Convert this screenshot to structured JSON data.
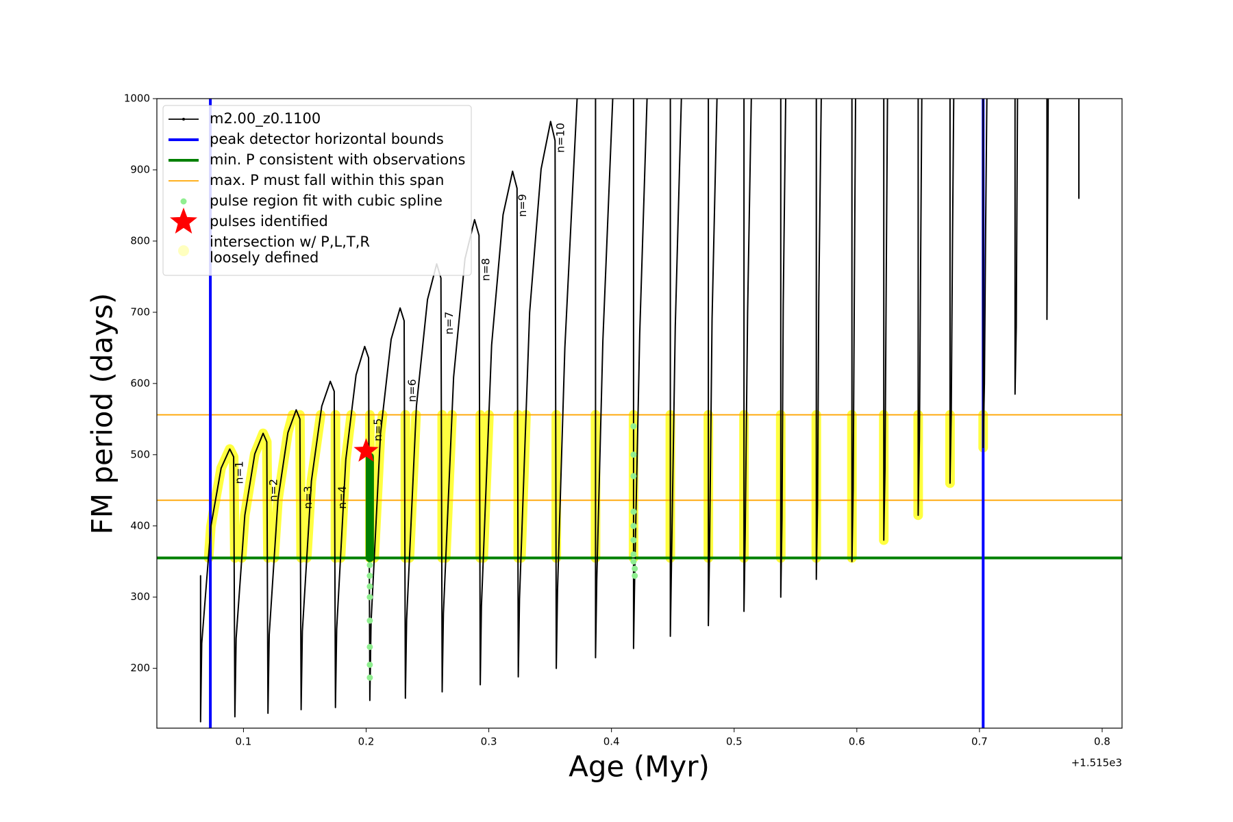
{
  "chart_data": {
    "type": "pulse-track",
    "xlabel": "Age (Myr)",
    "ylabel": "FM period (days)",
    "x_offset_label": "+1.515e3",
    "xlim": [
      0.0294,
      0.8162
    ],
    "ylim": [
      116,
      1000
    ],
    "xticks": [
      0.1,
      0.2,
      0.3,
      0.4,
      0.5,
      0.6,
      0.7,
      0.8
    ],
    "yticks": [
      200,
      300,
      400,
      500,
      600,
      700,
      800,
      900,
      1000
    ],
    "legend": "upper left",
    "series": [
      {
        "name": "m2.00_z0.1100",
        "kind": "line",
        "color": "#000000",
        "linewidth": 2,
        "x": [
          0.065,
          0.065,
          0.066,
          0.0734,
          0.0818,
          0.0888,
          0.092,
          0.093,
          0.094,
          0.1011,
          0.1092,
          0.116,
          0.119,
          0.12,
          0.121,
          0.1281,
          0.1362,
          0.143,
          0.146,
          0.147,
          0.148,
          0.1554,
          0.1638,
          0.1708,
          0.174,
          0.175,
          0.176,
          0.1834,
          0.1918,
          0.1988,
          0.202,
          0.203,
          0.204,
          0.2117,
          0.2204,
          0.2277,
          0.231,
          0.232,
          0.233,
          0.241,
          0.25,
          0.2575,
          0.261,
          0.262,
          0.263,
          0.2713,
          0.2806,
          0.2884,
          0.292,
          0.293,
          0.294,
          0.3023,
          0.3116,
          0.3194,
          0.323,
          0.324,
          0.325,
          0.3333,
          0.3426,
          0.3504,
          0.354,
          0.355,
          0.356,
          0.362,
          0.372,
          null,
          0.387,
          0.387,
          0.388,
          0.393,
          0.401,
          null,
          0.418,
          0.418,
          0.419,
          0.423,
          0.429,
          null,
          0.448,
          0.448,
          0.449,
          0.452,
          0.457,
          null,
          0.479,
          0.479,
          0.48,
          0.482,
          0.486,
          null,
          0.508,
          0.508,
          0.509,
          0.511,
          0.514,
          null,
          0.538,
          0.538,
          0.539,
          0.54,
          0.542,
          null,
          0.567,
          0.567,
          0.568,
          0.569,
          0.571,
          null,
          0.596,
          0.596,
          0.597,
          0.598,
          0.599,
          null,
          0.622,
          0.622,
          0.623,
          0.624,
          0.625,
          null,
          0.65,
          0.65,
          0.651,
          0.652,
          0.653,
          null,
          0.676,
          0.676,
          0.677,
          0.678,
          0.679,
          null,
          0.703,
          0.703,
          0.704,
          0.705,
          0.706,
          null,
          0.729,
          0.729,
          0.73,
          0.731,
          null,
          0.755,
          0.755,
          0.756,
          null,
          0.781,
          0.781
        ],
        "values": [
          330,
          125,
          235,
          399,
          481,
          508,
          497,
          132,
          242,
          415,
          501,
          530,
          518,
          137,
          247,
          437,
          531,
          563,
          550,
          142,
          252,
          463,
          568,
          603,
          589,
          145,
          255,
          493,
          612,
          652,
          636,
          155,
          265,
          530,
          662,
          706,
          688,
          158,
          268,
          568,
          718,
          768,
          748,
          167,
          277,
          609,
          775,
          830,
          808,
          177,
          287,
          654,
          837,
          898,
          874,
          188,
          298,
          700,
          901,
          968,
          941,
          200,
          310,
          650,
          1000,
          null,
          1000,
          215,
          325,
          660,
          1000,
          null,
          1000,
          228,
          338,
          670,
          1000,
          null,
          1000,
          245,
          355,
          680,
          1000,
          null,
          1000,
          260,
          370,
          690,
          1000,
          null,
          1000,
          280,
          390,
          700,
          1000,
          null,
          1000,
          300,
          410,
          710,
          1000,
          null,
          1000,
          325,
          430,
          720,
          1000,
          null,
          1000,
          350,
          450,
          730,
          1000,
          null,
          1000,
          380,
          480,
          750,
          1000,
          null,
          1000,
          415,
          520,
          770,
          1000,
          null,
          1000,
          460,
          560,
          800,
          1000,
          null,
          1000,
          510,
          600,
          820,
          1000,
          null,
          1000,
          585,
          680,
          1000,
          null,
          1000,
          690,
          1000,
          null,
          1000,
          860
        ]
      },
      {
        "name": "peak detector horizontal bounds",
        "kind": "vline",
        "color": "#0000ff",
        "linewidth": 4,
        "x": [
          0.073,
          0.703
        ]
      },
      {
        "name": "min. P consistent with observations",
        "kind": "hline",
        "color": "#008000",
        "linewidth": 4,
        "values": [
          355
        ]
      },
      {
        "name": "max. P must fall within this span",
        "kind": "hline",
        "color": "#ffa500",
        "linewidth": 1.8,
        "values": [
          436,
          556
        ]
      },
      {
        "name": "pulse region fit with cubic spline",
        "kind": "scatter",
        "color": "#90ee90",
        "x": [
          0.203,
          0.203,
          0.203,
          0.203,
          0.203,
          0.203,
          0.203,
          0.203,
          0.419,
          0.419,
          0.418,
          0.418,
          0.418,
          0.418,
          0.418,
          0.418,
          0.418,
          0.418
        ],
        "values": [
          187,
          205,
          230,
          267,
          300,
          315,
          330,
          345,
          330,
          340,
          350,
          360,
          380,
          400,
          420,
          470,
          500,
          540
        ]
      },
      {
        "kind": "thick",
        "color": "#008000",
        "linewidth": 12,
        "x": [
          0.203,
          0.203
        ],
        "values": [
          355,
          497
        ]
      },
      {
        "name": "pulses identified",
        "kind": "star",
        "color": "#ff0000",
        "x": [
          0.2
        ],
        "values": [
          505
        ]
      },
      {
        "name": "intersection w/ P,L,T,R\nloosely defined",
        "kind": "band",
        "color": "#ffff00",
        "linewidth": 14,
        "x": [
          0.0716,
          0.0734,
          0.0818,
          0.0888,
          0.092,
          0.093,
          null,
          0.0986,
          0.1011,
          0.1092,
          0.116,
          0.119,
          0.12,
          null,
          0.125,
          0.1281,
          0.1362,
          0.14,
          null,
          0.146,
          0.147,
          null,
          0.1516,
          0.1554,
          0.1629,
          null,
          0.175,
          0.175,
          null,
          0.1791,
          0.1834,
          0.1878,
          null,
          0.203,
          0.203,
          null,
          0.2066,
          0.2117,
          0.2134,
          null,
          0.232,
          0.232,
          null,
          0.2353,
          0.2407,
          null,
          0.262,
          0.262,
          null,
          0.2649,
          0.27,
          null,
          0.293,
          0.293,
          null,
          0.2955,
          0.3001,
          null,
          0.324,
          0.324,
          null,
          0.3262,
          0.3303,
          null,
          0.355,
          0.355,
          null,
          0.387,
          0.387,
          null,
          0.418,
          0.418,
          null,
          0.448,
          0.448,
          null,
          0.479,
          0.479,
          null,
          0.508,
          0.508,
          null,
          0.538,
          0.538,
          null,
          0.567,
          0.567,
          null,
          0.596,
          0.596,
          null,
          0.622,
          0.622,
          null,
          0.65,
          0.65,
          null,
          0.676,
          0.676,
          null,
          0.703,
          0.703
        ],
        "values": [
          355,
          399,
          481,
          508,
          497,
          355,
          null,
          355,
          415,
          501,
          530,
          518,
          355,
          null,
          355,
          437,
          531,
          556,
          null,
          556,
          355,
          null,
          355,
          463,
          556,
          null,
          556,
          355,
          null,
          355,
          493,
          556,
          null,
          556,
          355,
          null,
          355,
          530,
          556,
          null,
          556,
          355,
          null,
          355,
          556,
          null,
          556,
          355,
          null,
          355,
          556,
          null,
          556,
          355,
          null,
          355,
          556,
          null,
          556,
          355,
          null,
          355,
          556,
          null,
          556,
          355,
          null,
          556,
          355,
          null,
          556,
          355,
          null,
          556,
          355,
          null,
          556,
          355,
          null,
          556,
          355,
          null,
          556,
          355,
          null,
          556,
          355,
          null,
          556,
          355,
          null,
          556,
          380,
          null,
          556,
          415,
          null,
          556,
          460,
          null,
          556,
          510
        ]
      }
    ],
    "annotations": [
      {
        "text": "n=1",
        "x": 0.097,
        "y": 475
      },
      {
        "text": "n=2",
        "x": 0.125,
        "y": 450
      },
      {
        "text": "n=3",
        "x": 0.153,
        "y": 440
      },
      {
        "text": "n=4",
        "x": 0.181,
        "y": 440
      },
      {
        "text": "n=5",
        "x": 0.21,
        "y": 535
      },
      {
        "text": "n=6",
        "x": 0.238,
        "y": 590
      },
      {
        "text": "n=7",
        "x": 0.268,
        "y": 685
      },
      {
        "text": "n=8",
        "x": 0.298,
        "y": 760
      },
      {
        "text": "n=9",
        "x": 0.328,
        "y": 850
      },
      {
        "text": "n=10",
        "x": 0.359,
        "y": 945
      }
    ]
  }
}
